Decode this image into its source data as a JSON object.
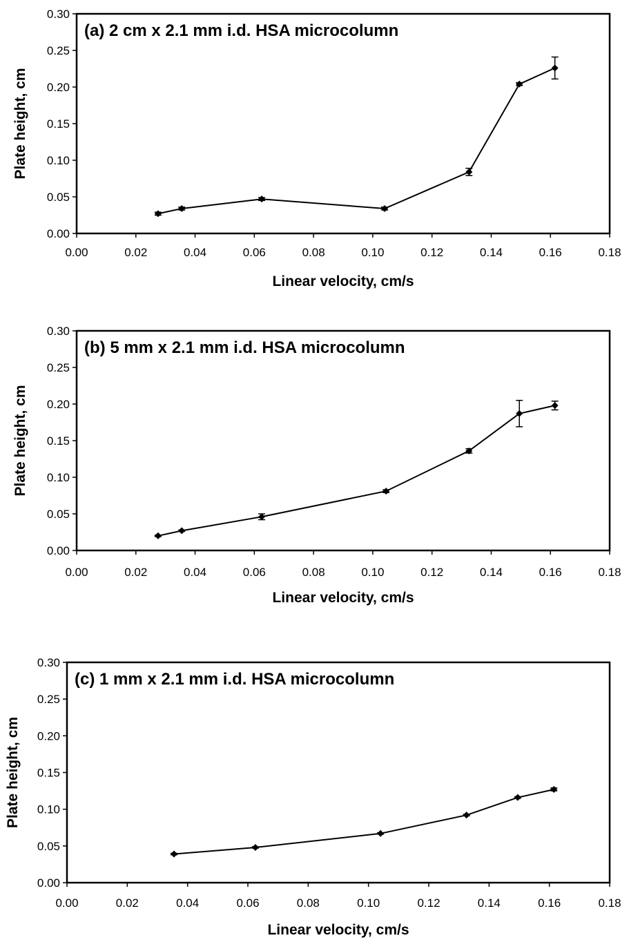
{
  "chart_data": [
    {
      "type": "line",
      "title": "(a) 2 cm x 2.1 mm i.d. HSA microcolumn",
      "xlabel": "Linear velocity, cm/s",
      "ylabel": "Plate height, cm",
      "xlim": [
        0,
        0.18
      ],
      "ylim": [
        0,
        0.3
      ],
      "xticks": [
        "0.00",
        "0.02",
        "0.04",
        "0.06",
        "0.08",
        "0.10",
        "0.12",
        "0.14",
        "0.16",
        "0.18"
      ],
      "yticks": [
        "0.00",
        "0.05",
        "0.10",
        "0.15",
        "0.20",
        "0.25",
        "0.30"
      ],
      "grid": false,
      "legend": "none",
      "series": [
        {
          "x": [
            0.0275,
            0.0355,
            0.0625,
            0.104,
            0.1325,
            0.1495,
            0.1615
          ],
          "y": [
            0.027,
            0.034,
            0.047,
            0.034,
            0.084,
            0.204,
            0.226
          ],
          "error": [
            0.002,
            0.002,
            0.002,
            0.002,
            0.005,
            0.002,
            0.015
          ]
        }
      ]
    },
    {
      "type": "line",
      "title": "(b) 5 mm x 2.1 mm i.d. HSA microcolumn",
      "xlabel": "Linear velocity, cm/s",
      "ylabel": "Plate height, cm",
      "xlim": [
        0,
        0.18
      ],
      "ylim": [
        0,
        0.3
      ],
      "xticks": [
        "0.00",
        "0.02",
        "0.04",
        "0.06",
        "0.08",
        "0.10",
        "0.12",
        "0.14",
        "0.16",
        "0.18"
      ],
      "yticks": [
        "0.00",
        "0.05",
        "0.10",
        "0.15",
        "0.20",
        "0.25",
        "0.30"
      ],
      "grid": false,
      "legend": "none",
      "series": [
        {
          "x": [
            0.0275,
            0.0355,
            0.0625,
            0.1045,
            0.1325,
            0.1495,
            0.1615
          ],
          "y": [
            0.02,
            0.027,
            0.046,
            0.081,
            0.136,
            0.187,
            0.198
          ],
          "error": [
            0.001,
            0.001,
            0.004,
            0.002,
            0.003,
            0.018,
            0.006
          ]
        }
      ]
    },
    {
      "type": "line",
      "title": "(c) 1 mm x 2.1 mm i.d. HSA microcolumn",
      "xlabel": "Linear velocity, cm/s",
      "ylabel": "Plate height, cm",
      "xlim": [
        0,
        0.18
      ],
      "ylim": [
        0,
        0.3
      ],
      "xticks": [
        "0.00",
        "0.02",
        "0.04",
        "0.06",
        "0.08",
        "0.10",
        "0.12",
        "0.14",
        "0.16",
        "0.18"
      ],
      "yticks": [
        "0.00",
        "0.05",
        "0.10",
        "0.15",
        "0.20",
        "0.25",
        "0.30"
      ],
      "grid": false,
      "legend": "none",
      "series": [
        {
          "x": [
            0.0355,
            0.0625,
            0.104,
            0.1325,
            0.1495,
            0.1615
          ],
          "y": [
            0.039,
            0.048,
            0.067,
            0.092,
            0.116,
            0.127
          ],
          "error": [
            0.001,
            0.001,
            0.001,
            0.001,
            0.001,
            0.002
          ]
        }
      ]
    }
  ],
  "colors": {
    "marker": "#000000",
    "line": "#000000",
    "frame": "#000000",
    "background": "#ffffff"
  }
}
